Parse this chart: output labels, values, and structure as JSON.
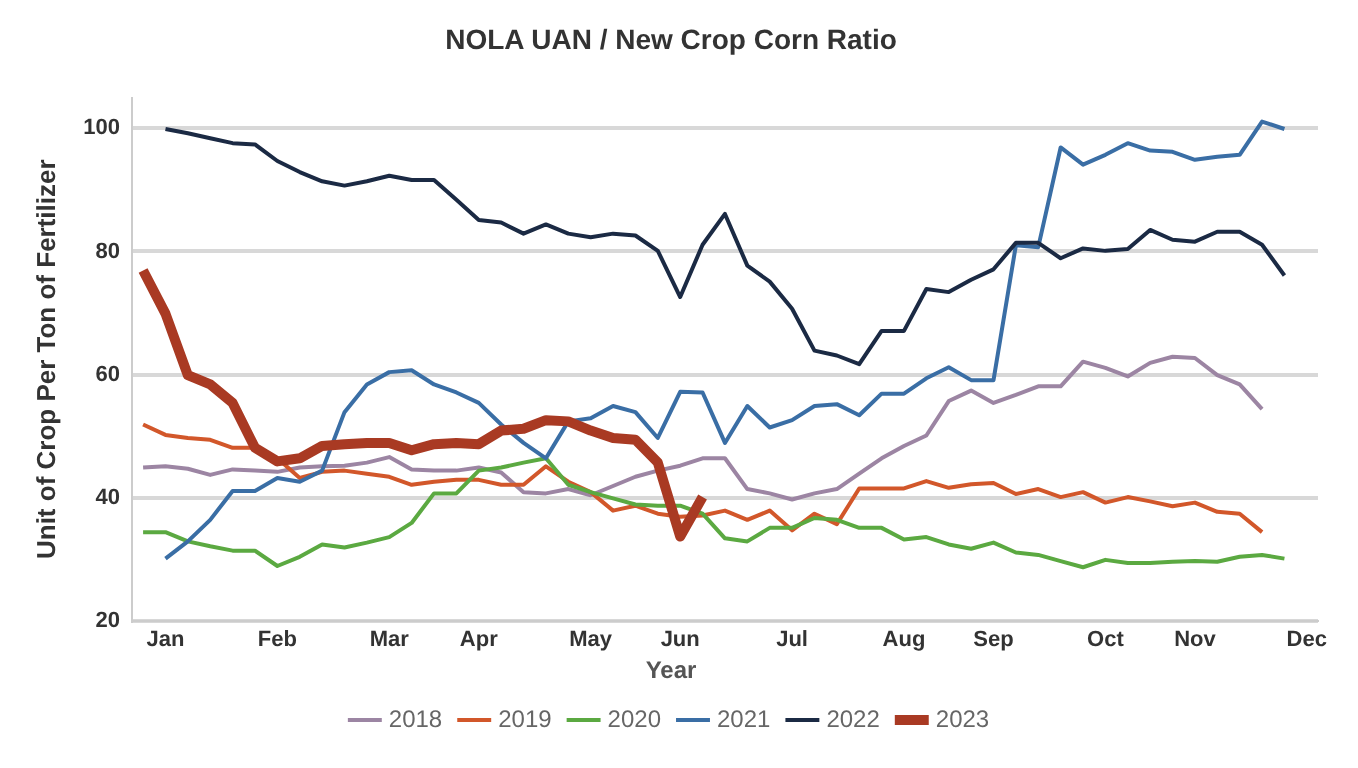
{
  "chart_data": {
    "type": "line",
    "title": "NOLA UAN / New Crop Corn Ratio",
    "ylabel": "Unit of Crop Per Ton of Fertilizer",
    "legend_title": "Year",
    "legend": "bottom",
    "grid": "y",
    "categories": [
      null,
      "Jan",
      null,
      null,
      null,
      null,
      "Feb",
      null,
      null,
      null,
      null,
      "Mar",
      null,
      null,
      null,
      "Apr",
      null,
      null,
      null,
      null,
      "May",
      null,
      null,
      null,
      "Jun",
      null,
      null,
      null,
      null,
      "Jul",
      null,
      null,
      null,
      null,
      "Aug",
      null,
      null,
      null,
      "Sep",
      null,
      null,
      null,
      null,
      "Oct",
      null,
      null,
      null,
      "Nov",
      null,
      null,
      null,
      null,
      "Dec"
    ],
    "ylim": [
      20,
      105
    ],
    "yticks": [
      20,
      40,
      60,
      80,
      100
    ],
    "series": [
      {
        "name": "2018",
        "color": "#9c85a3",
        "values": [
          44.9,
          45.1,
          44.7,
          43.7,
          44.6,
          44.4,
          44.2,
          44.9,
          45.1,
          45.2,
          45.7,
          46.6,
          44.6,
          44.4,
          44.4,
          44.9,
          44.1,
          40.9,
          40.7,
          41.4,
          40.4,
          41.9,
          43.4,
          44.4,
          45.2,
          46.4,
          46.4,
          41.4,
          40.7,
          39.7,
          40.7,
          41.4,
          43.9,
          46.4,
          48.4,
          50.1,
          55.7,
          57.4,
          55.4,
          56.7,
          58.1,
          58.1,
          62.1,
          61.1,
          59.7,
          61.9,
          62.9,
          62.7,
          59.9,
          58.4,
          54.4,
          null,
          null
        ]
      },
      {
        "name": "2019",
        "color": "#d2572a",
        "values": [
          51.9,
          50.2,
          49.7,
          49.4,
          48.1,
          48.1,
          46.4,
          43.2,
          44.2,
          44.4,
          43.9,
          43.4,
          42.1,
          42.6,
          42.9,
          42.9,
          42.1,
          42.1,
          45.1,
          42.6,
          40.9,
          37.9,
          38.7,
          37.4,
          36.9,
          37.1,
          37.9,
          36.4,
          37.9,
          34.7,
          37.4,
          35.7,
          41.5,
          41.5,
          41.5,
          42.7,
          41.6,
          42.2,
          42.4,
          40.6,
          41.4,
          40.1,
          40.9,
          39.2,
          40.1,
          39.4,
          38.6,
          39.2,
          37.7,
          37.4,
          34.4,
          null,
          null
        ]
      },
      {
        "name": "2020",
        "color": "#5ba941",
        "values": [
          34.4,
          34.4,
          32.9,
          32.1,
          31.4,
          31.4,
          28.9,
          30.4,
          32.4,
          31.9,
          32.7,
          33.6,
          35.9,
          40.7,
          40.7,
          44.4,
          44.9,
          45.7,
          46.4,
          42.1,
          40.9,
          39.9,
          38.9,
          38.7,
          38.7,
          37.4,
          33.4,
          32.9,
          35.1,
          35.1,
          36.7,
          36.4,
          35.1,
          35.1,
          33.2,
          33.6,
          32.4,
          31.7,
          32.7,
          31.1,
          30.7,
          29.7,
          28.7,
          29.9,
          29.4,
          29.4,
          29.6,
          29.7,
          29.6,
          30.4,
          30.7,
          30.1,
          null
        ]
      },
      {
        "name": "2021",
        "color": "#3a6ea5",
        "values": [
          null,
          30.1,
          32.9,
          36.4,
          41.1,
          41.1,
          43.2,
          42.6,
          44.4,
          53.9,
          58.4,
          60.4,
          60.7,
          58.4,
          57.1,
          55.4,
          51.9,
          48.9,
          46.4,
          52.4,
          52.9,
          54.9,
          53.9,
          49.7,
          57.2,
          57.1,
          48.9,
          54.9,
          51.4,
          52.6,
          54.9,
          55.2,
          53.4,
          56.9,
          56.9,
          59.4,
          61.2,
          59.1,
          59.1,
          81.0,
          80.7,
          96.9,
          94.1,
          95.7,
          97.6,
          96.4,
          96.2,
          94.9,
          95.4,
          95.7,
          101.1,
          99.9,
          null
        ]
      },
      {
        "name": "2022",
        "color": "#1b2a44",
        "values": [
          null,
          99.9,
          99.2,
          98.4,
          97.6,
          97.4,
          94.7,
          92.9,
          91.4,
          90.7,
          91.4,
          92.3,
          91.6,
          91.6,
          88.4,
          85.1,
          84.7,
          82.9,
          84.4,
          82.9,
          82.3,
          82.9,
          82.6,
          80.1,
          72.6,
          81.1,
          86.1,
          77.7,
          75.1,
          70.7,
          63.9,
          63.1,
          61.7,
          67.1,
          67.1,
          73.9,
          73.4,
          75.4,
          77.1,
          81.4,
          81.4,
          78.9,
          80.5,
          80.1,
          80.4,
          83.5,
          81.9,
          81.6,
          83.2,
          83.2,
          81.1,
          76.1,
          null
        ]
      },
      {
        "name": "2023",
        "color": "#a93a23",
        "values": [
          76.9,
          69.9,
          59.9,
          58.4,
          55.4,
          48.1,
          45.9,
          46.4,
          48.4,
          48.7,
          48.9,
          48.9,
          47.7,
          48.7,
          48.9,
          48.7,
          50.9,
          51.2,
          52.6,
          52.4,
          50.9,
          49.7,
          49.4,
          45.7,
          33.7,
          40.1,
          null,
          null,
          null,
          null,
          null,
          null,
          null,
          null,
          null,
          null,
          null,
          null,
          null,
          null,
          null,
          null,
          null,
          null,
          null,
          null,
          null,
          null,
          null,
          null,
          null,
          null,
          null
        ]
      }
    ]
  }
}
